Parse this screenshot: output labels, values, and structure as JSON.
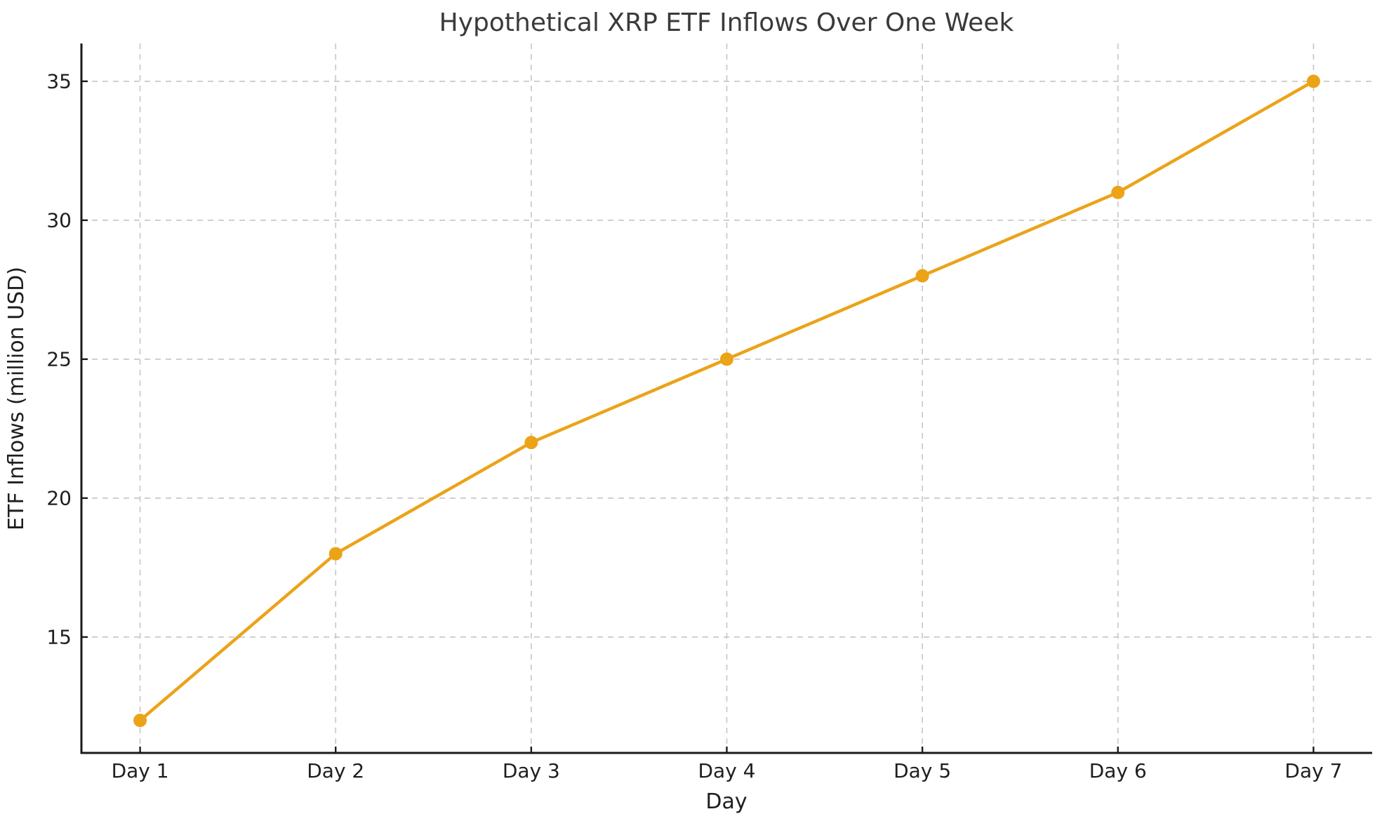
{
  "chart_data": {
    "type": "line",
    "title": "Hypothetical XRP ETF Inflows Over One Week",
    "xlabel": "Day",
    "ylabel": "ETF Inflows (million USD)",
    "categories": [
      "Day 1",
      "Day 2",
      "Day 3",
      "Day 4",
      "Day 5",
      "Day 6",
      "Day 7"
    ],
    "series": [
      {
        "name": "ETF Inflows",
        "values": [
          12,
          18,
          22,
          25,
          28,
          31,
          35
        ]
      }
    ],
    "yticks": [
      15,
      20,
      25,
      30,
      35
    ],
    "ylim": [
      10.83,
      36.36
    ],
    "xlim": [
      -0.3,
      6.3
    ],
    "grid": true,
    "grid_style": "dashed",
    "legend": "none",
    "marker": "circle",
    "colors": {
      "line": "#EBA318",
      "marker": "#EBA318",
      "grid": "#C9C9C9",
      "spine": "#1A1A1A",
      "tick": "#1A1A1A",
      "tick_label": "#1F1F1F",
      "title": "#3A3A3A",
      "background": "#FFFFFF"
    }
  }
}
